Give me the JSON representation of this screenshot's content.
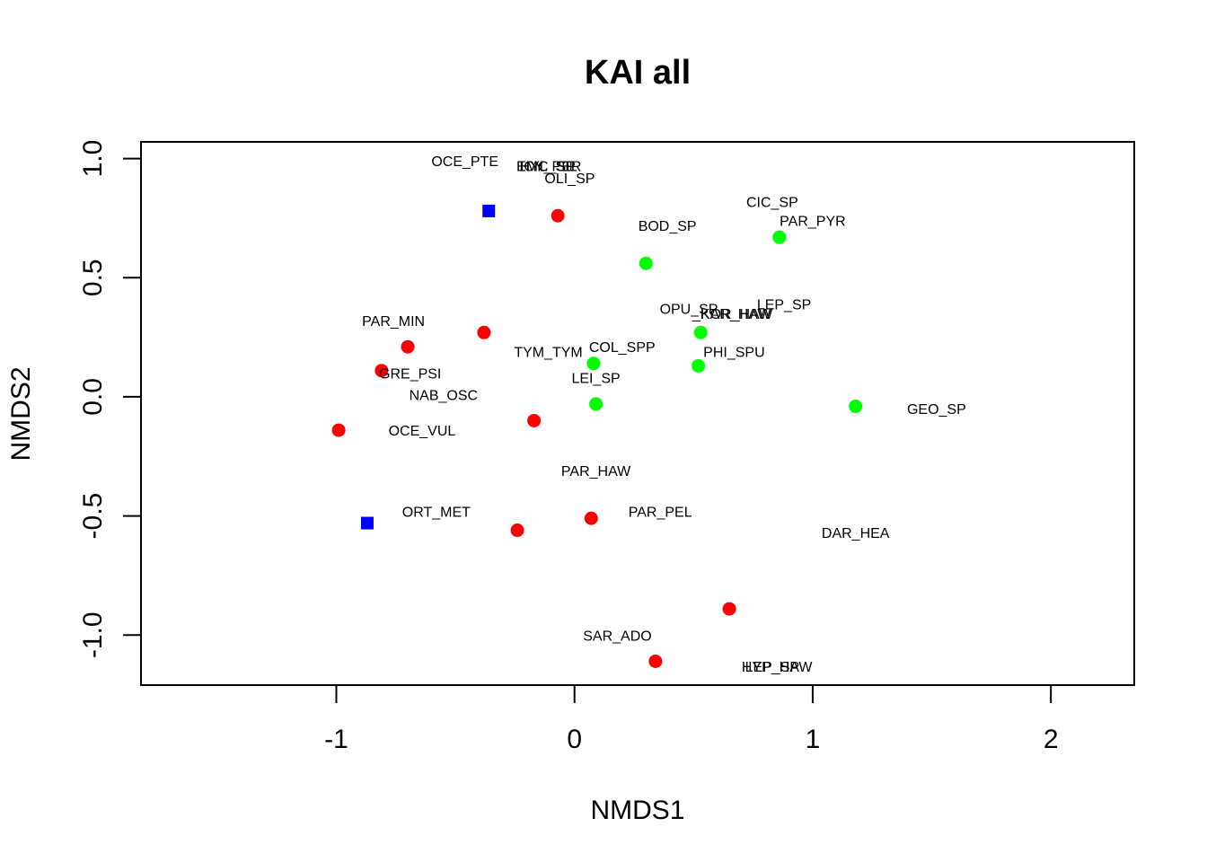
{
  "chart_data": {
    "type": "scatter",
    "title": "KAI all",
    "xlabel": "NMDS1",
    "ylabel": "NMDS2",
    "xlim": [
      -1.82,
      2.35
    ],
    "ylim": [
      -1.21,
      1.07
    ],
    "xticks": [
      -1,
      0,
      1,
      2
    ],
    "yticks": [
      -1.0,
      -0.5,
      0.0,
      0.5,
      1.0
    ],
    "xtick_labels": [
      "-1",
      "0",
      "1",
      "2"
    ],
    "ytick_labels": [
      "-1.0",
      "-0.5",
      "0.0",
      "0.5",
      "1.0"
    ],
    "grid": false,
    "colors": {
      "red": "#ff0000",
      "green": "#00ff00",
      "blue": "#0000ff"
    },
    "points": [
      {
        "x": -0.36,
        "y": 0.78,
        "color": "blue",
        "shape": "square"
      },
      {
        "x": -0.87,
        "y": -0.53,
        "color": "blue",
        "shape": "square"
      },
      {
        "x": -0.07,
        "y": 0.76,
        "color": "red",
        "shape": "circle"
      },
      {
        "x": -0.38,
        "y": 0.27,
        "color": "red",
        "shape": "circle"
      },
      {
        "x": -0.7,
        "y": 0.21,
        "color": "red",
        "shape": "circle"
      },
      {
        "x": -0.81,
        "y": 0.11,
        "color": "red",
        "shape": "circle"
      },
      {
        "x": -0.99,
        "y": -0.14,
        "color": "red",
        "shape": "circle"
      },
      {
        "x": -0.17,
        "y": -0.1,
        "color": "red",
        "shape": "circle"
      },
      {
        "x": 0.07,
        "y": -0.51,
        "color": "red",
        "shape": "circle"
      },
      {
        "x": -0.24,
        "y": -0.56,
        "color": "red",
        "shape": "circle"
      },
      {
        "x": 0.65,
        "y": -0.89,
        "color": "red",
        "shape": "circle"
      },
      {
        "x": 0.34,
        "y": -1.11,
        "color": "red",
        "shape": "circle"
      },
      {
        "x": 0.3,
        "y": 0.56,
        "color": "green",
        "shape": "circle"
      },
      {
        "x": 0.86,
        "y": 0.67,
        "color": "green",
        "shape": "circle"
      },
      {
        "x": 0.53,
        "y": 0.27,
        "color": "green",
        "shape": "circle"
      },
      {
        "x": 0.52,
        "y": 0.13,
        "color": "green",
        "shape": "circle"
      },
      {
        "x": 0.08,
        "y": 0.14,
        "color": "green",
        "shape": "circle"
      },
      {
        "x": 0.09,
        "y": -0.03,
        "color": "green",
        "shape": "circle"
      },
      {
        "x": 1.18,
        "y": -0.04,
        "color": "green",
        "shape": "circle"
      }
    ],
    "species_labels": [
      {
        "text": "OCE_PTE",
        "x": -0.46,
        "y": 0.99
      },
      {
        "text": "ICY_PER",
        "x": -0.1,
        "y": 0.97
      },
      {
        "text": "HYL_SIL",
        "x": -0.11,
        "y": 0.97
      },
      {
        "text": "EMC_SP",
        "x": -0.12,
        "y": 0.97
      },
      {
        "text": "OLI_SP",
        "x": -0.02,
        "y": 0.92
      },
      {
        "text": "CIC_SP",
        "x": 0.83,
        "y": 0.82
      },
      {
        "text": "PAR_PYR",
        "x": 1.0,
        "y": 0.74
      },
      {
        "text": "BOD_SP",
        "x": 0.39,
        "y": 0.72
      },
      {
        "text": "LEP_SP",
        "x": 0.88,
        "y": 0.39
      },
      {
        "text": "OPU_SP",
        "x": 0.48,
        "y": 0.37
      },
      {
        "text": "_KAR_HAW",
        "x": 0.66,
        "y": 0.35
      },
      {
        "text": "KOR_HAW",
        "x": 0.68,
        "y": 0.35
      },
      {
        "text": "PAR_MIN",
        "x": -0.76,
        "y": 0.32
      },
      {
        "text": "COL_SPP",
        "x": 0.2,
        "y": 0.21
      },
      {
        "text": "PHI_SPU",
        "x": 0.67,
        "y": 0.19
      },
      {
        "text": "TYM_TYM",
        "x": -0.11,
        "y": 0.19
      },
      {
        "text": "LEI_SP",
        "x": 0.09,
        "y": 0.08
      },
      {
        "text": "GRE_PSI",
        "x": -0.69,
        "y": 0.1
      },
      {
        "text": "NAB_OSC",
        "x": -0.55,
        "y": 0.01
      },
      {
        "text": "GEO_SP",
        "x": 1.52,
        "y": -0.05
      },
      {
        "text": "OCE_VUL",
        "x": -0.64,
        "y": -0.14
      },
      {
        "text": "PAR_HAW",
        "x": 0.09,
        "y": -0.31
      },
      {
        "text": "ORT_MET",
        "x": -0.58,
        "y": -0.48
      },
      {
        "text": "PAR_PEL",
        "x": 0.36,
        "y": -0.48
      },
      {
        "text": "DAR_HEA",
        "x": 1.18,
        "y": -0.57
      },
      {
        "text": "SAR_ADO",
        "x": 0.18,
        "y": -1.0
      },
      {
        "text": "LEP_SP",
        "x": 0.83,
        "y": -1.13
      },
      {
        "text": "HYP_HAW",
        "x": 0.85,
        "y": -1.13
      }
    ]
  }
}
